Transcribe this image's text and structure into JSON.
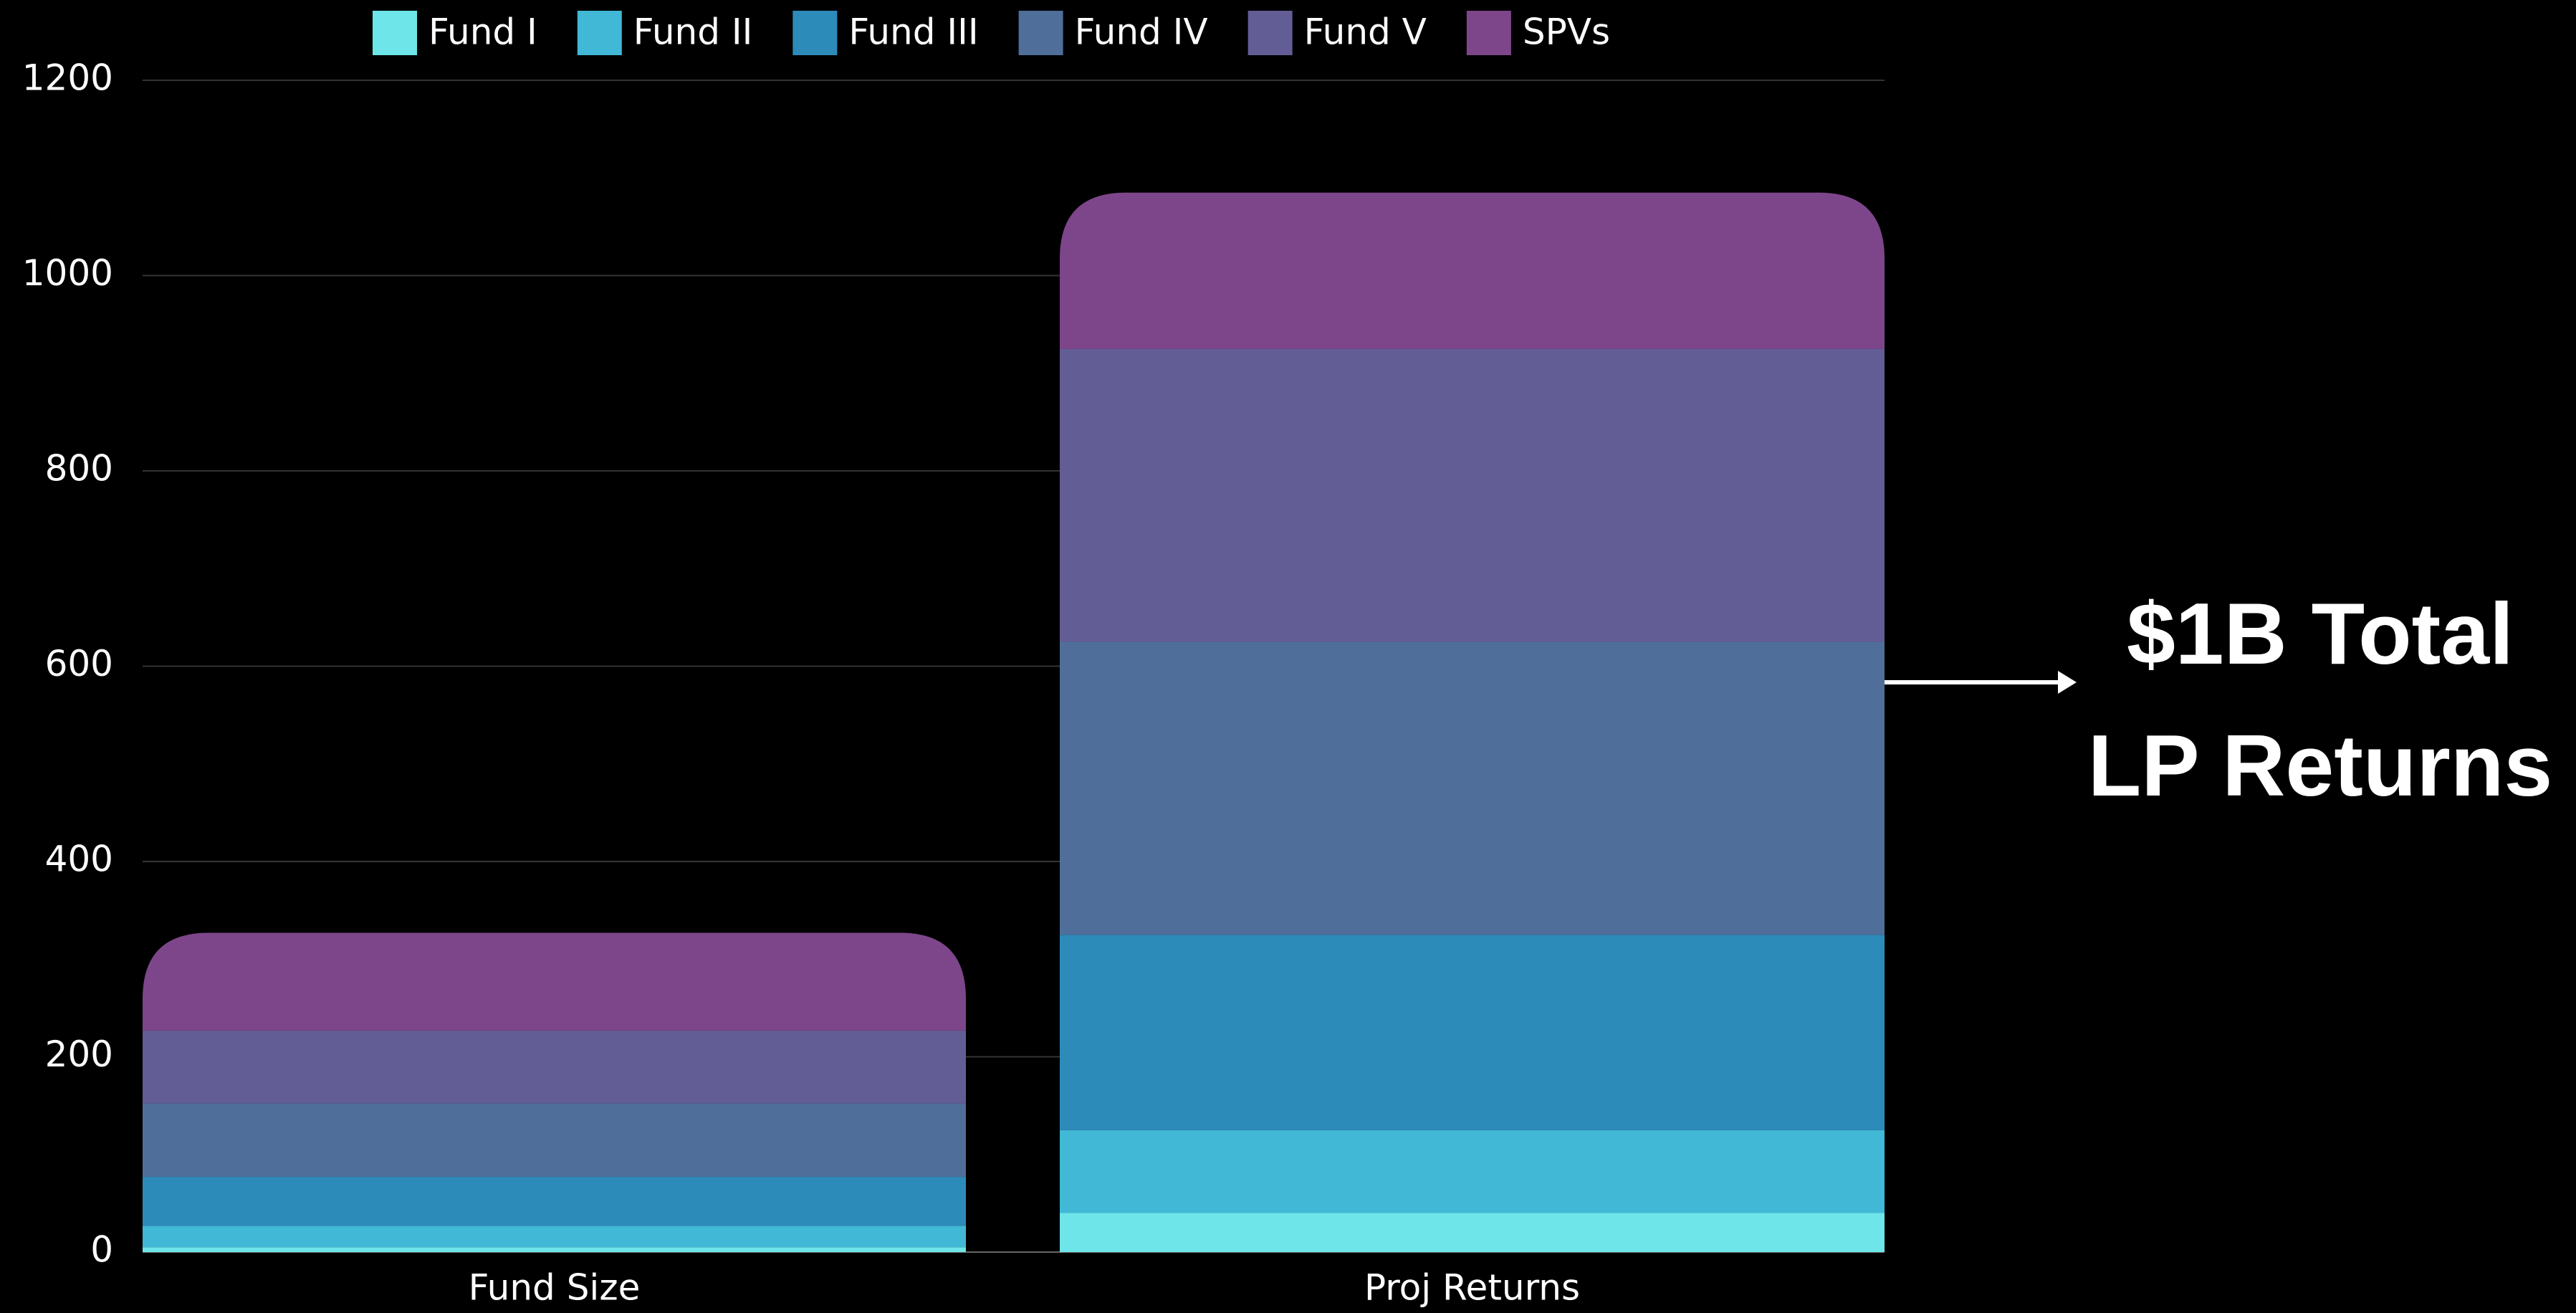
{
  "chart_data": {
    "type": "stacked_bar",
    "categories": [
      "Fund Size",
      "Proj Returns"
    ],
    "series": [
      {
        "name": "Fund I",
        "color": "#6ee5e8",
        "values": [
          5,
          40
        ]
      },
      {
        "name": "Fund II",
        "color": "#41b8d5",
        "values": [
          22,
          85
        ]
      },
      {
        "name": "Fund III",
        "color": "#2d8bba",
        "values": [
          50,
          200
        ]
      },
      {
        "name": "Fund IV",
        "color": "#506e9a",
        "values": [
          75,
          300
        ]
      },
      {
        "name": "Fund V",
        "color": "#635d96",
        "values": [
          75,
          300
        ]
      },
      {
        "name": "SPVs",
        "color": "#7e468a",
        "values": [
          100,
          160
        ]
      }
    ],
    "ylim": [
      0,
      1200
    ],
    "yticks": [
      0,
      200,
      400,
      600,
      800,
      1000,
      1200
    ],
    "grid": true,
    "legend": "top",
    "annotation": [
      "$1B Total",
      "LP Returns"
    ]
  }
}
